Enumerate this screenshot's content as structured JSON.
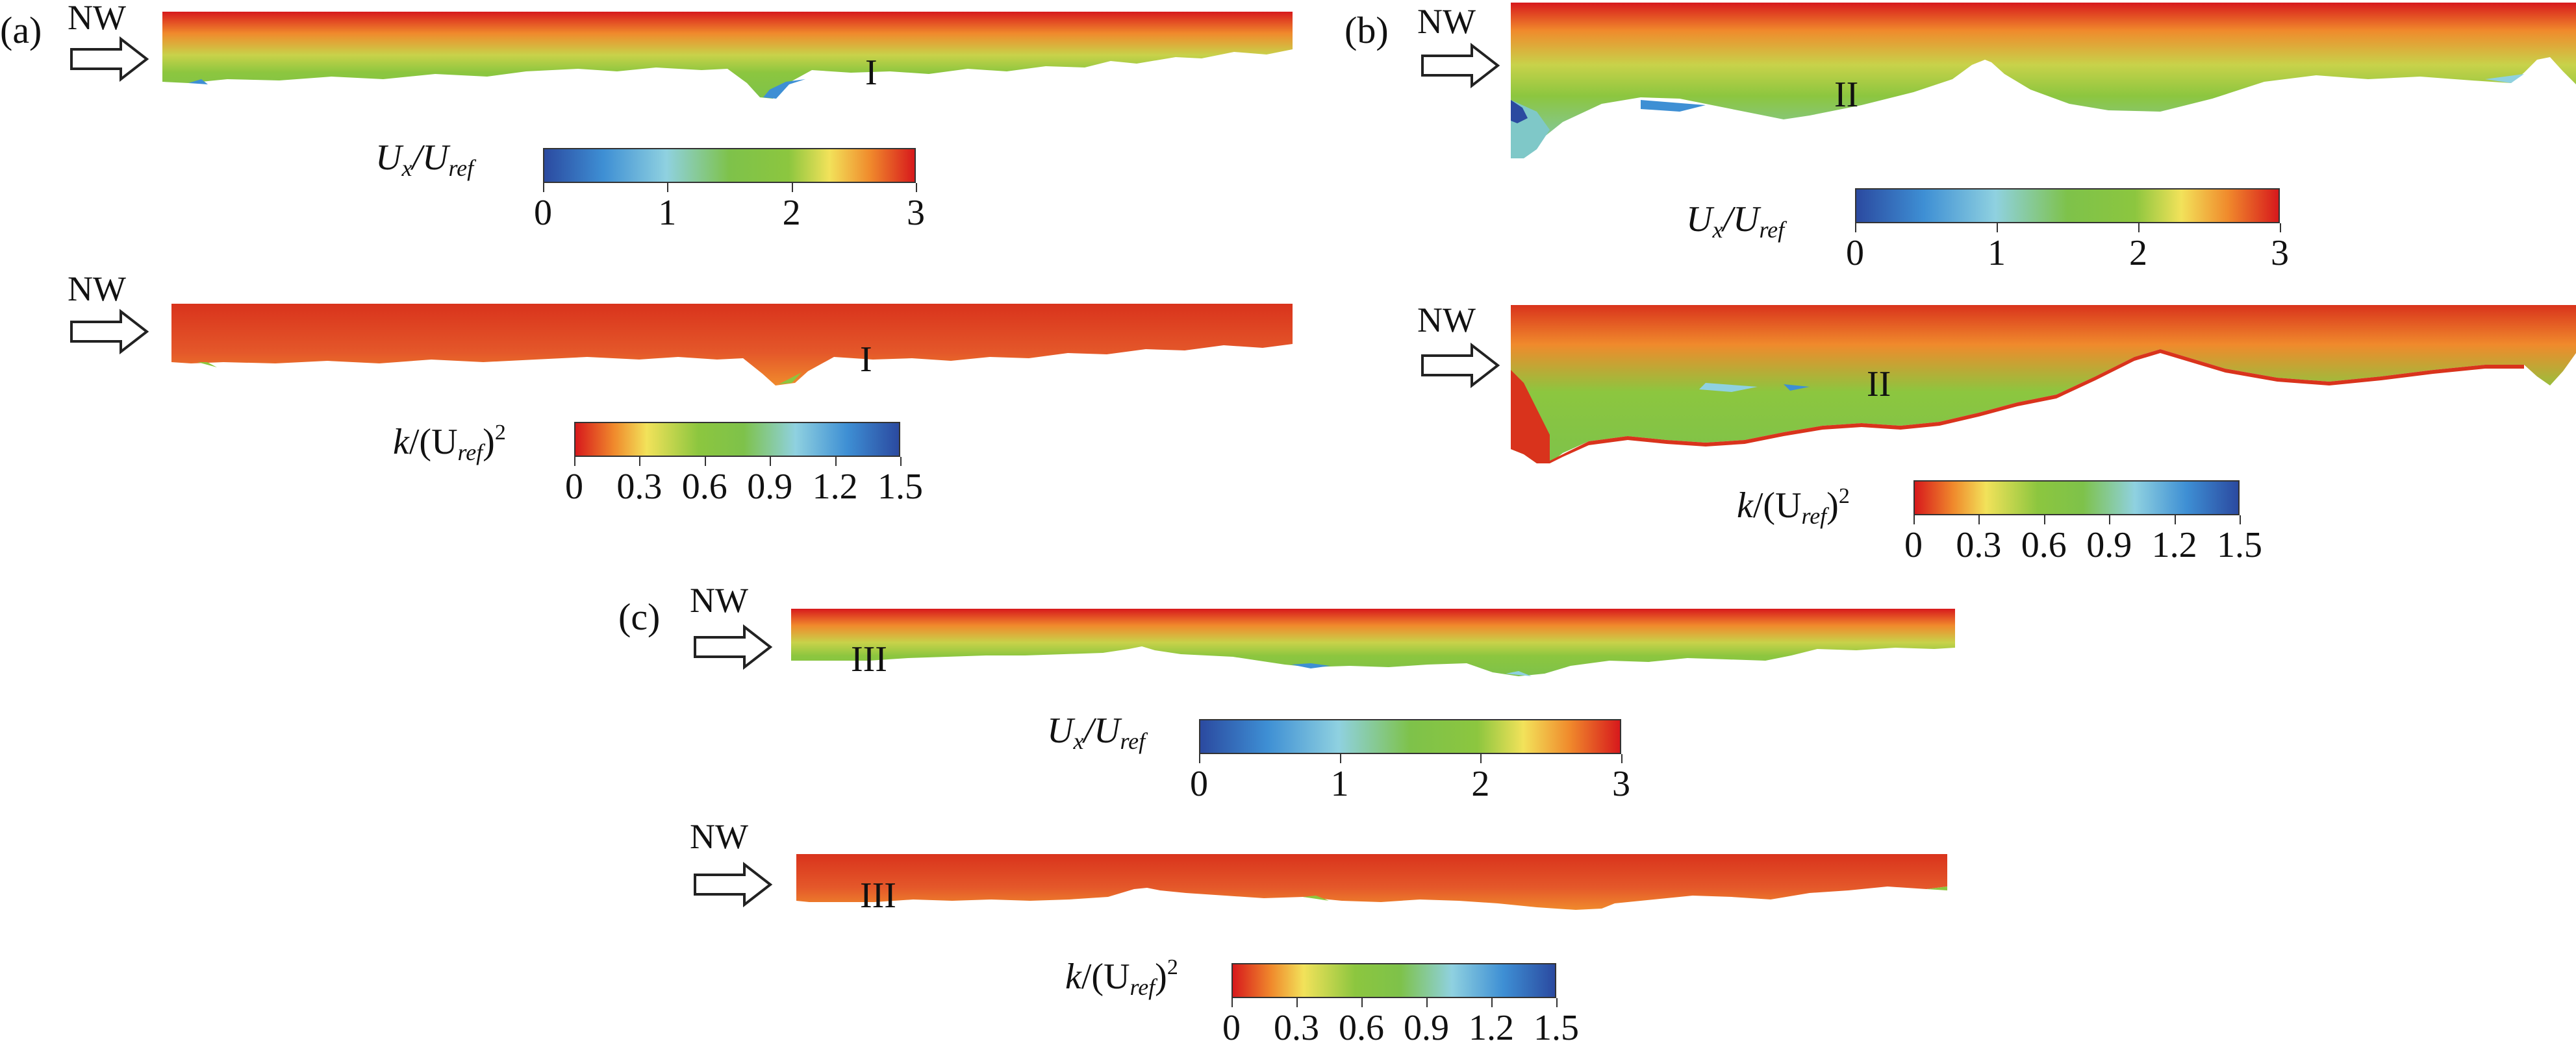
{
  "figure": {
    "panels": [
      {
        "id": "a",
        "label": "(a)",
        "wind_label": "NW",
        "section_label": "I",
        "velocity_colorbar": {
          "label_main": "U",
          "label_sub": "x",
          "label_div": "/U",
          "label_sub2": "ref",
          "ticks": [
            "0",
            "1",
            "2",
            "3"
          ]
        },
        "tke_colorbar": {
          "label_main": "k",
          "label_mid": "/(U",
          "label_sub": "ref",
          "label_end": ")",
          "label_sup": "2",
          "ticks": [
            "0",
            "0.3",
            "0.6",
            "0.9",
            "1.2",
            "1.5"
          ]
        }
      },
      {
        "id": "b",
        "label": "(b)",
        "wind_label": "NW",
        "section_label": "II",
        "velocity_colorbar": {
          "label_main": "U",
          "label_sub": "x",
          "label_div": "/U",
          "label_sub2": "ref",
          "ticks": [
            "0",
            "1",
            "2",
            "3"
          ]
        },
        "tke_colorbar": {
          "label_main": "k",
          "label_mid": "/(U",
          "label_sub": "ref",
          "label_end": ")",
          "label_sup": "2",
          "ticks": [
            "0",
            "0.3",
            "0.6",
            "0.9",
            "1.2",
            "1.5"
          ]
        }
      },
      {
        "id": "c",
        "label": "(c)",
        "wind_label": "NW",
        "section_label": "III",
        "velocity_colorbar": {
          "label_main": "U",
          "label_sub": "x",
          "label_div": "/U",
          "label_sub2": "ref",
          "ticks": [
            "0",
            "1",
            "2",
            "3"
          ]
        },
        "tke_colorbar": {
          "label_main": "k",
          "label_mid": "/(U",
          "label_sub": "ref",
          "label_end": ")",
          "label_sup": "2",
          "ticks": [
            "0",
            "0.3",
            "0.6",
            "0.9",
            "1.2",
            "1.5"
          ]
        }
      }
    ],
    "colors": {
      "high": "#d7191c",
      "orange": "#f08a2c",
      "yellow": "#f2e25a",
      "green": "#8cc63f",
      "cyan": "#8fd1e0",
      "blue": "#2b4aa0"
    }
  }
}
